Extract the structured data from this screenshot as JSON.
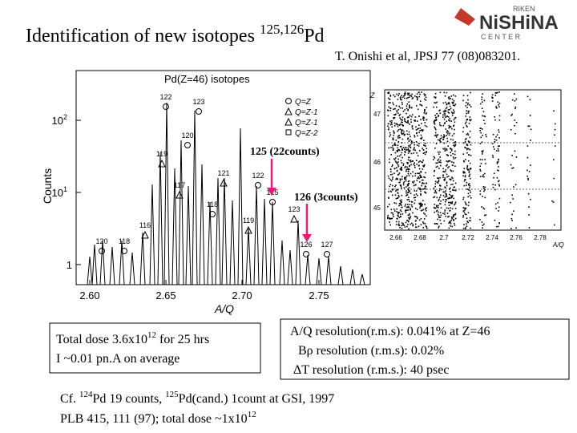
{
  "header": {
    "title": "Identification of new isotopes ",
    "title_sup": "125,126",
    "title_end": "Pd",
    "citation": "T. Onishi et al, JPSJ 77 (08)083201.",
    "logo": {
      "top": "RIKEN",
      "main": "NiSHiNA",
      "bottom": "C E N T E R"
    }
  },
  "spectrum": {
    "title": "Pd(Z=46)  isotopes",
    "ylabel": "Counts",
    "xlabel": "A/Q",
    "xticks": [
      "2.60",
      "2.65",
      "2.70",
      "2.75"
    ],
    "yticks": [
      {
        "base": "10",
        "exp": "2"
      },
      {
        "base": "10",
        "exp": "1"
      },
      {
        "base": "1"
      }
    ],
    "peaks": [
      "122",
      "123",
      "120",
      "119",
      "121",
      "117",
      "118",
      "116",
      "120",
      "118",
      "122",
      "125",
      "119",
      "123",
      "126",
      "127"
    ],
    "legend": [
      "Q=Z",
      "Q=Z-1",
      "Q=Z-1",
      "Q=Z-2"
    ],
    "annotations": [
      "125 (22counts)",
      "126 (3counts)"
    ]
  },
  "scatter": {
    "ylabel": "Z",
    "yticks": [
      "47",
      "46",
      "45"
    ],
    "xticks": [
      "2.66",
      "2.68",
      "2.7",
      "2.72",
      "2.74",
      "2.76",
      "2.78"
    ],
    "xlabel": "A/Q"
  },
  "dose_box": {
    "line1": "Total dose 3.6x10",
    "line1_sup": "12",
    "line1_end": " for 25 hrs",
    "line2": "I ~0.01 pn.A on average"
  },
  "resolution_box": {
    "line1": "A/Q resolution(r.m.s): 0.041% at Z=46",
    "line2": "Bρ resolution (r.m.s): 0.02%",
    "line3": "ΔT resolution (r.m.s.): 40 psec"
  },
  "reference": {
    "line1_a": "Cf. ",
    "line1_sup1": "124",
    "line1_b": "Pd  19 counts, ",
    "line1_sup2": "125",
    "line1_c": "Pd(cand.) 1count at GSI, 1997",
    "line2": "PLB 415, 111 (97); total dose ~1x10",
    "line2_sup": "12"
  }
}
